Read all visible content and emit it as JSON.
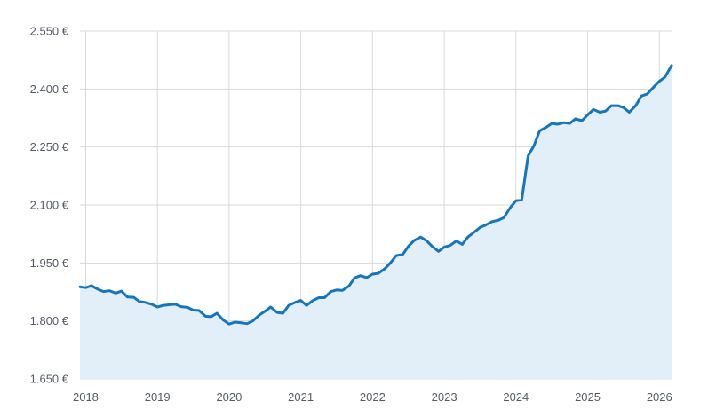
{
  "chart_data": {
    "type": "area",
    "title": "",
    "xlabel": "",
    "ylabel": "",
    "grid": true,
    "x_tick_labels": [
      "2018",
      "2019",
      "2020",
      "2021",
      "2022",
      "2023",
      "2024",
      "2025",
      "2026"
    ],
    "y_tick_labels": [
      "1.650 €",
      "1.800 €",
      "1.950 €",
      "2.100 €",
      "2.250 €",
      "2.400 €",
      "2.550 €"
    ],
    "y_ticks": [
      1650,
      1800,
      1950,
      2100,
      2250,
      2400,
      2550
    ],
    "ylim": [
      1650,
      2550
    ],
    "xlim": [
      2017.92,
      2026.17
    ],
    "colors": {
      "line": "#1576bf",
      "fill": "#e3eff8",
      "grid": "#d6d9de",
      "label": "#555b66"
    },
    "series": [
      {
        "x": [
          2017.92,
          2018.0,
          2018.08,
          2018.17,
          2018.25,
          2018.33,
          2018.42,
          2018.5,
          2018.58,
          2018.67,
          2018.75,
          2018.83,
          2018.92,
          2019.0,
          2019.08,
          2019.17,
          2019.25,
          2019.33,
          2019.42,
          2019.5,
          2019.58,
          2019.67,
          2019.75,
          2019.83,
          2019.92,
          2020.0,
          2020.08,
          2020.17,
          2020.25,
          2020.33,
          2020.42,
          2020.5,
          2020.58,
          2020.67,
          2020.75,
          2020.83,
          2020.92,
          2021.0,
          2021.08,
          2021.17,
          2021.25,
          2021.33,
          2021.42,
          2021.5,
          2021.58,
          2021.67,
          2021.75,
          2021.83,
          2021.92,
          2022.0,
          2022.08,
          2022.17,
          2022.25,
          2022.33,
          2022.42,
          2022.5,
          2022.58,
          2022.67,
          2022.75,
          2022.83,
          2022.92,
          2023.0,
          2023.08,
          2023.17,
          2023.25,
          2023.33,
          2023.42,
          2023.5,
          2023.58,
          2023.67,
          2023.75,
          2023.83,
          2023.92,
          2024.0,
          2024.08,
          2024.17,
          2024.25,
          2024.33,
          2024.42,
          2024.5,
          2024.58,
          2024.67,
          2024.75,
          2024.83,
          2024.92,
          2025.0,
          2025.08,
          2025.17,
          2025.25,
          2025.33,
          2025.42,
          2025.5,
          2025.58,
          2025.67,
          2025.75,
          2025.83,
          2025.92,
          2026.0,
          2026.08,
          2026.17
        ],
        "values": [
          1888,
          1886,
          1891,
          1882,
          1876,
          1878,
          1872,
          1877,
          1862,
          1861,
          1850,
          1848,
          1843,
          1836,
          1840,
          1842,
          1843,
          1837,
          1835,
          1828,
          1827,
          1812,
          1811,
          1820,
          1802,
          1792,
          1797,
          1795,
          1793,
          1800,
          1815,
          1825,
          1836,
          1822,
          1820,
          1840,
          1848,
          1853,
          1840,
          1853,
          1860,
          1860,
          1876,
          1880,
          1879,
          1890,
          1911,
          1917,
          1912,
          1921,
          1923,
          1935,
          1950,
          1969,
          1972,
          1993,
          2008,
          2017,
          2008,
          1993,
          1980,
          1991,
          1995,
          2007,
          1998,
          2017,
          2030,
          2042,
          2048,
          2057,
          2060,
          2067,
          2093,
          2111,
          2113,
          2227,
          2253,
          2292,
          2301,
          2311,
          2309,
          2313,
          2311,
          2323,
          2318,
          2333,
          2347,
          2340,
          2343,
          2357,
          2357,
          2352,
          2340,
          2357,
          2382,
          2387,
          2405,
          2420,
          2431,
          2461
        ]
      }
    ]
  }
}
